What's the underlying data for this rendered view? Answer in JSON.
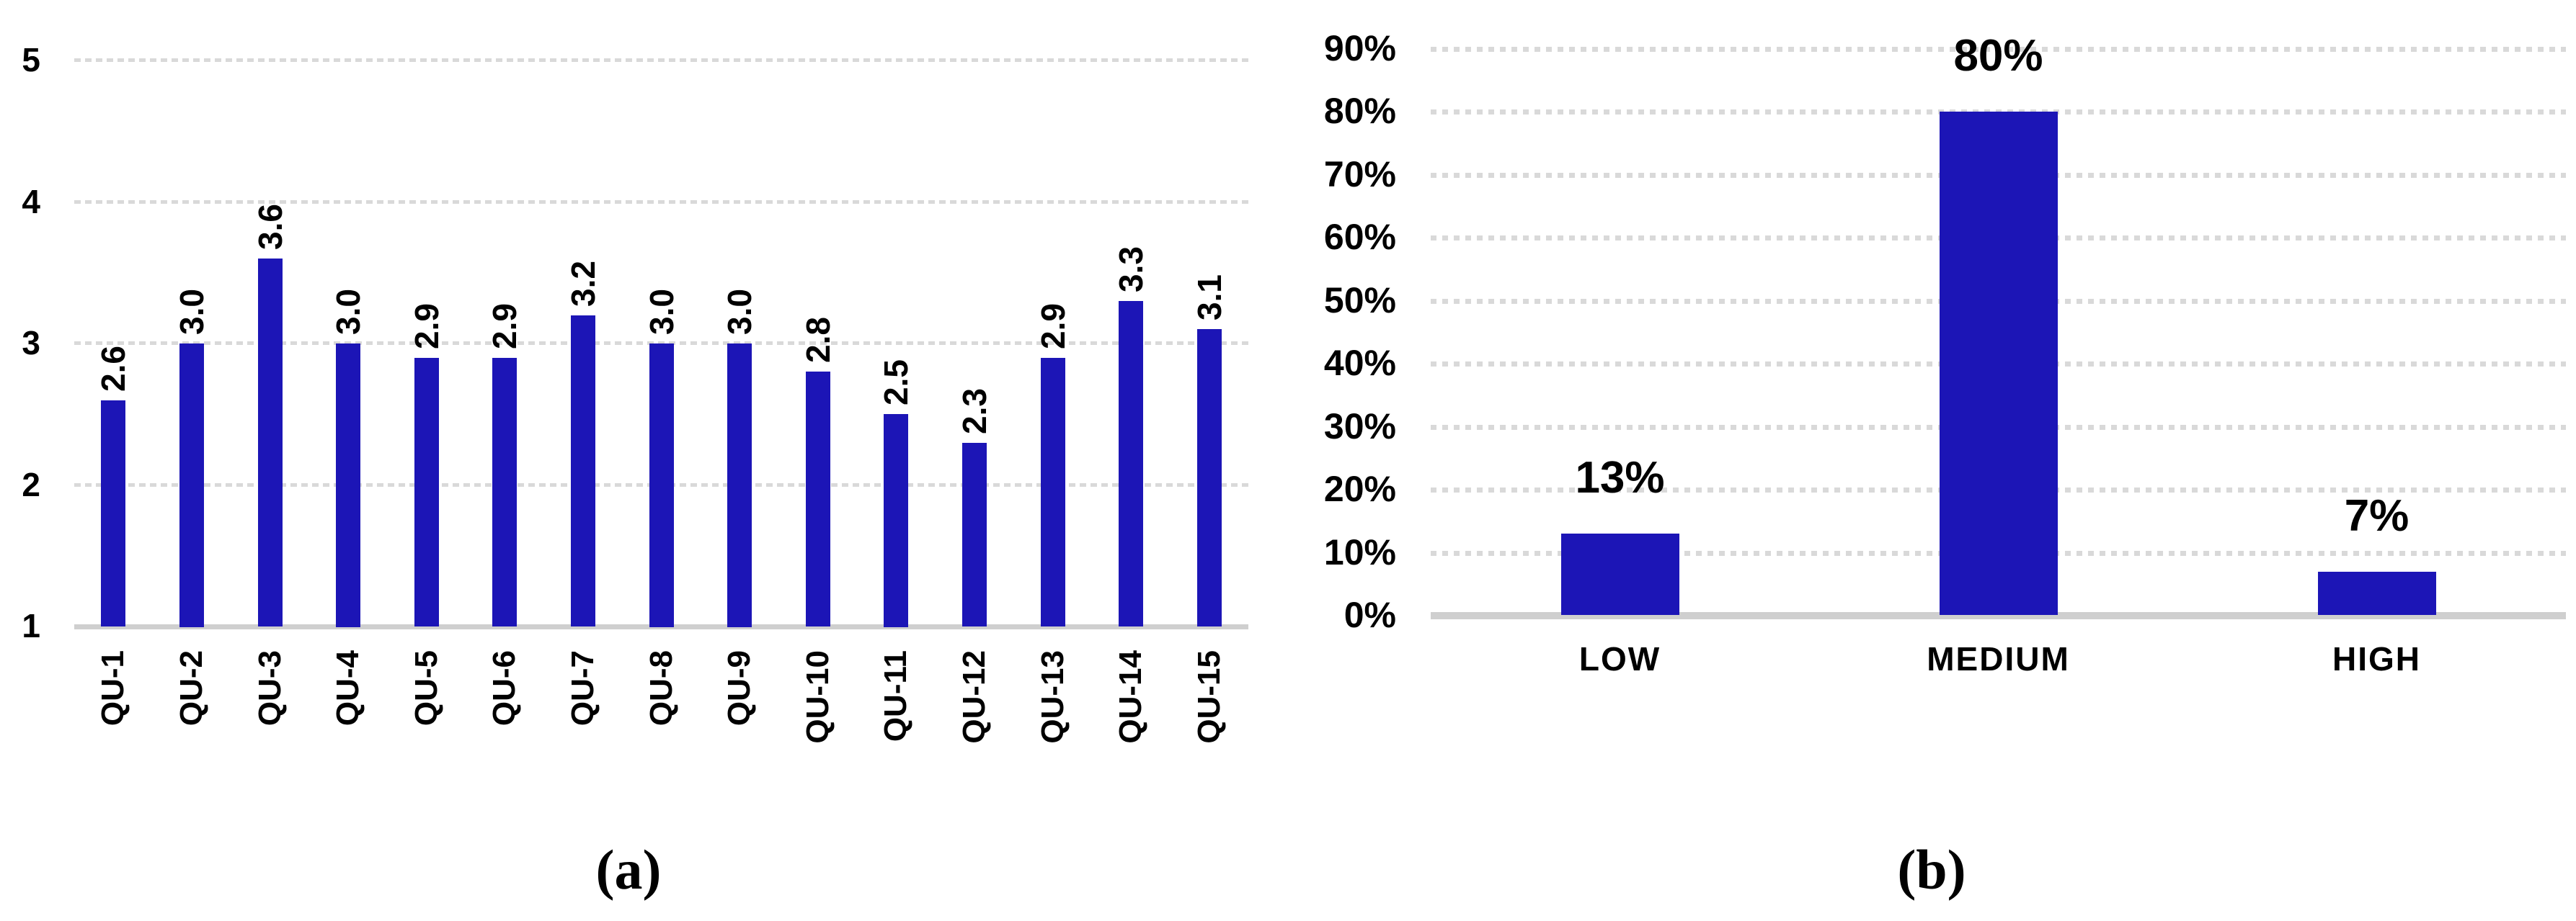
{
  "figure": {
    "background": "#ffffff",
    "bar_color": "#1c15b6",
    "gridline_color": "#d9d9d9",
    "axis_line_color": "#cfcfcf",
    "text_color": "#000000",
    "captions": {
      "a": "(a)",
      "b": "(b)"
    }
  },
  "chart_data": [
    {
      "id": "a",
      "type": "bar",
      "caption": "(a)",
      "title": "",
      "xlabel": "",
      "ylabel": "",
      "categories": [
        "QU-1",
        "QU-2",
        "QU-3",
        "QU-4",
        "QU-5",
        "QU-6",
        "QU-7",
        "QU-8",
        "QU-9",
        "QU-10",
        "QU-11",
        "QU-12",
        "QU-13",
        "QU-14",
        "QU-15"
      ],
      "values": [
        2.6,
        3.0,
        3.6,
        3.0,
        2.9,
        2.9,
        3.2,
        3.0,
        3.0,
        2.8,
        2.5,
        2.3,
        2.9,
        3.3,
        3.1
      ],
      "data_labels": [
        "2.6",
        "3.0",
        "3.6",
        "3.0",
        "2.9",
        "2.9",
        "3.2",
        "3.0",
        "3.0",
        "2.8",
        "2.5",
        "2.3",
        "2.9",
        "3.3",
        "3.1"
      ],
      "ylim": [
        1,
        5
      ],
      "ytick_values": [
        1,
        2,
        3,
        4,
        5
      ],
      "ytick_labels": [
        "1",
        "2",
        "3",
        "4",
        "5"
      ],
      "grid": "horizontal-dotted",
      "legend": "none",
      "category_label_rotation_deg": 90,
      "value_label_rotation_deg": 90
    },
    {
      "id": "b",
      "type": "bar",
      "caption": "(b)",
      "title": "",
      "xlabel": "",
      "ylabel": "",
      "categories": [
        "LOW",
        "MEDIUM",
        "HIGH"
      ],
      "values": [
        13,
        80,
        7
      ],
      "data_labels": [
        "13%",
        "80%",
        "7%"
      ],
      "ylim": [
        0,
        90
      ],
      "ytick_values": [
        0,
        10,
        20,
        30,
        40,
        50,
        60,
        70,
        80,
        90
      ],
      "ytick_labels": [
        "0%",
        "10%",
        "20%",
        "30%",
        "40%",
        "50%",
        "60%",
        "70%",
        "80%",
        "90%"
      ],
      "grid": "horizontal-dotted",
      "legend": "none",
      "category_label_rotation_deg": 0,
      "value_label_rotation_deg": 0
    }
  ]
}
